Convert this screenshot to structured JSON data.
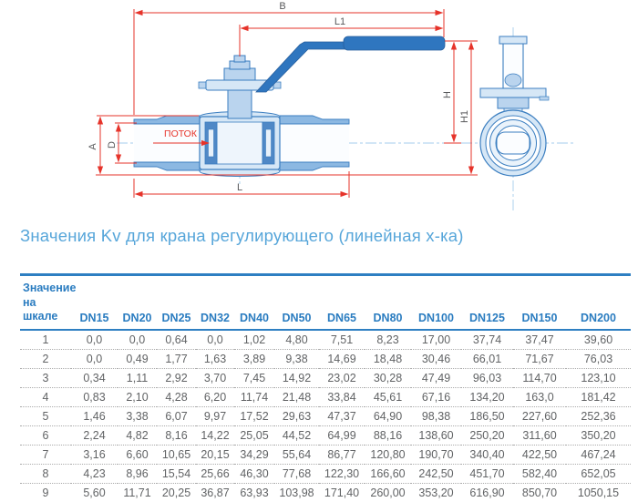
{
  "title": "Значения Kv для крана регулирующего (линейная х-ка)",
  "diagram": {
    "dim_labels": {
      "B": "B",
      "L1": "L1",
      "H": "H",
      "H1": "H1",
      "A": "A",
      "D": "D",
      "L": "L"
    },
    "flow_label": "ПОТОК",
    "colors": {
      "dimension_red": "#e6332a",
      "outline_blue": "#3b7ec0",
      "fill_light": "#d6e7f6",
      "fill_mid": "#bad4ee",
      "fill_wall": "#8cb8e2",
      "handle_blue": "#2f76bf",
      "centerline_blue": "#a5cdec",
      "label_gray": "#58595b"
    }
  },
  "table": {
    "corner_header_lines": [
      "Значение",
      "на шкале"
    ],
    "columns": [
      "DN15",
      "DN20",
      "DN25",
      "DN32",
      "DN40",
      "DN50",
      "DN65",
      "DN80",
      "DN100",
      "DN125",
      "DN150",
      "DN200"
    ],
    "rows": [
      {
        "scale": "1",
        "values": [
          "0,0",
          "0,0",
          "0,64",
          "0,0",
          "1,02",
          "4,80",
          "7,51",
          "8,23",
          "17,00",
          "37,74",
          "37,47",
          "39,60"
        ]
      },
      {
        "scale": "2",
        "values": [
          "0,0",
          "0,49",
          "1,77",
          "1,63",
          "3,89",
          "9,38",
          "14,69",
          "18,48",
          "30,46",
          "66,01",
          "71,67",
          "76,03"
        ]
      },
      {
        "scale": "3",
        "values": [
          "0,34",
          "1,11",
          "2,92",
          "3,70",
          "7,45",
          "14,92",
          "23,02",
          "30,28",
          "47,49",
          "96,03",
          "114,70",
          "123,10"
        ]
      },
      {
        "scale": "4",
        "values": [
          "0,83",
          "2,10",
          "4,28",
          "6,20",
          "11,74",
          "21,48",
          "33,84",
          "45,61",
          "67,16",
          "134,20",
          "163,0",
          "181,42"
        ]
      },
      {
        "scale": "5",
        "values": [
          "1,46",
          "3,38",
          "6,07",
          "9,97",
          "17,52",
          "29,63",
          "47,37",
          "64,90",
          "98,38",
          "186,50",
          "227,60",
          "252,36"
        ]
      },
      {
        "scale": "6",
        "values": [
          "2,24",
          "4,82",
          "8,16",
          "14,22",
          "25,05",
          "44,52",
          "64,99",
          "88,16",
          "138,60",
          "250,20",
          "311,60",
          "350,20"
        ]
      },
      {
        "scale": "7",
        "values": [
          "3,16",
          "6,60",
          "10,65",
          "20,15",
          "34,29",
          "55,64",
          "86,77",
          "120,80",
          "190,70",
          "340,40",
          "422,50",
          "467,24"
        ]
      },
      {
        "scale": "8",
        "values": [
          "4,23",
          "8,96",
          "15,54",
          "25,66",
          "46,30",
          "77,68",
          "122,30",
          "166,60",
          "242,50",
          "451,70",
          "582,40",
          "652,05"
        ]
      },
      {
        "scale": "9",
        "values": [
          "5,60",
          "11,71",
          "20,25",
          "36,87",
          "63,93",
          "103,98",
          "171,40",
          "260,00",
          "353,20",
          "616,90",
          "850,70",
          "1050,15"
        ]
      }
    ]
  },
  "colors": {
    "title_blue": "#57a6da",
    "header_blue": "#2a7cc0",
    "text_gray": "#616365",
    "rule_blue": "#2e7fc2"
  }
}
